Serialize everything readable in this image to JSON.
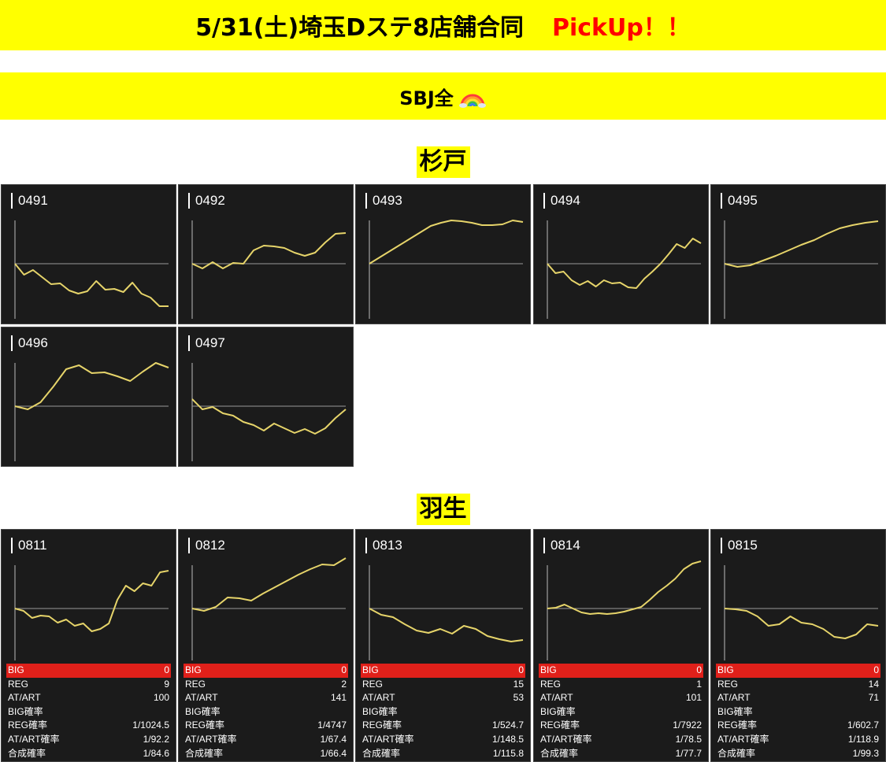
{
  "header": {
    "title": "5/31(土)埼玉Dステ8店舗合同",
    "pickup": "PickUp！！",
    "subtitle": "SBJ全",
    "subtitle_icon": "rainbow-icon"
  },
  "colors": {
    "banner": "#ffff00",
    "pickup": "#ff0000",
    "panel_bg": "#1b1b1b",
    "line": "#e6d46a",
    "big_row": "#e0201a"
  },
  "stores": [
    {
      "name": "杉戸",
      "machines": [
        {
          "num": "0491",
          "trend": [
            0,
            -14,
            -8,
            -17,
            -26,
            -25,
            -34,
            -38,
            -35,
            -22,
            -33,
            -32,
            -36,
            -24,
            -38,
            -43,
            -54,
            -54
          ]
        },
        {
          "num": "0492",
          "trend": [
            0,
            -6,
            2,
            -6,
            1,
            0,
            17,
            23,
            22,
            20,
            14,
            10,
            14,
            27,
            38,
            39
          ]
        },
        {
          "num": "0493",
          "trend": [
            0,
            8,
            16,
            24,
            32,
            40,
            48,
            52,
            55,
            54,
            52,
            49,
            49,
            50,
            55,
            53
          ]
        },
        {
          "num": "0494",
          "trend": [
            0,
            -12,
            -10,
            -21,
            -27,
            -22,
            -29,
            -21,
            -25,
            -24,
            -30,
            -31,
            -19,
            -10,
            0,
            12,
            25,
            20,
            32,
            26
          ]
        },
        {
          "num": "0495",
          "trend": [
            0,
            -4,
            -2,
            4,
            10,
            17,
            24,
            30,
            38,
            45,
            49,
            52,
            54
          ]
        }
      ]
    },
    {
      "name": "",
      "machines": [
        {
          "num": "0496",
          "trend": [
            0,
            -4,
            5,
            25,
            47,
            52,
            42,
            43,
            38,
            32,
            44,
            55,
            49
          ]
        },
        {
          "num": "0497",
          "trend": [
            9,
            -4,
            -1,
            -9,
            -12,
            -20,
            -24,
            -31,
            -22,
            -28,
            -34,
            -29,
            -35,
            -28,
            -15,
            -4
          ]
        }
      ]
    },
    {
      "name": "羽生",
      "machines": [
        {
          "num": "0811",
          "trend": [
            0,
            -3,
            -12,
            -9,
            -10,
            -18,
            -14,
            -22,
            -19,
            -29,
            -26,
            -19,
            11,
            29,
            22,
            32,
            29,
            46,
            48
          ],
          "stats": {
            "BIG": "0",
            "REG": "9",
            "AT/ART": "100",
            "BIG確率": "",
            "REG確率": "1/1024.5",
            "AT/ART確率": "1/92.2",
            "合成確率": "1/84.6"
          }
        },
        {
          "num": "0812",
          "trend": [
            0,
            -3,
            2,
            14,
            13,
            10,
            19,
            27,
            35,
            43,
            50,
            56,
            55,
            64
          ],
          "stats": {
            "BIG": "0",
            "REG": "2",
            "AT/ART": "141",
            "BIG確率": "",
            "REG確率": "1/4747",
            "AT/ART確率": "1/67.4",
            "合成確率": "1/66.4"
          }
        },
        {
          "num": "0813",
          "trend": [
            0,
            -8,
            -11,
            -20,
            -28,
            -31,
            -26,
            -32,
            -22,
            -26,
            -35,
            -39,
            -42,
            -40
          ],
          "stats": {
            "BIG": "0",
            "REG": "15",
            "AT/ART": "53",
            "BIG確率": "",
            "REG確率": "1/524.7",
            "AT/ART確率": "1/148.5",
            "合成確率": "1/115.8"
          }
        },
        {
          "num": "0814",
          "trend": [
            0,
            1,
            5,
            0,
            -5,
            -7,
            -6,
            -7,
            -6,
            -4,
            -1,
            2,
            11,
            21,
            29,
            38,
            50,
            57,
            60
          ],
          "stats": {
            "BIG": "0",
            "REG": "1",
            "AT/ART": "101",
            "BIG確率": "",
            "REG確率": "1/7922",
            "AT/ART確率": "1/78.5",
            "合成確率": "1/77.7"
          }
        },
        {
          "num": "0815",
          "trend": [
            0,
            -1,
            -3,
            -10,
            -22,
            -20,
            -10,
            -18,
            -20,
            -26,
            -36,
            -38,
            -33,
            -20,
            -22
          ],
          "stats": {
            "BIG": "0",
            "REG": "14",
            "AT/ART": "71",
            "BIG確率": "",
            "REG確率": "1/602.7",
            "AT/ART確率": "1/118.9",
            "合成確率": "1/99.3"
          }
        }
      ]
    }
  ]
}
